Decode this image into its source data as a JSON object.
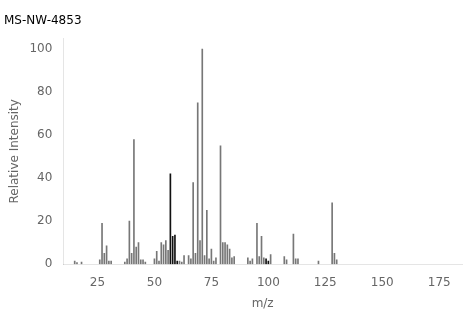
{
  "chart_data": {
    "type": "bar",
    "title": "MS-NW-4853",
    "xlabel": "m/z",
    "ylabel": "Relative Intensity",
    "x": [
      15,
      16,
      18,
      26,
      27,
      28,
      29,
      30,
      31,
      37,
      38,
      39,
      40,
      41,
      42,
      43,
      44,
      45,
      46,
      50,
      51,
      52,
      53,
      54,
      55,
      56,
      57,
      58,
      59,
      60,
      61,
      62,
      63,
      65,
      66,
      67,
      68,
      69,
      70,
      71,
      72,
      73,
      74,
      75,
      76,
      77,
      79,
      80,
      81,
      82,
      83,
      84,
      85,
      91,
      92,
      93,
      95,
      96,
      97,
      98,
      99,
      100,
      101,
      107,
      108,
      111,
      112,
      113,
      122,
      128,
      129,
      130
    ],
    "values": [
      1.5,
      0.8,
      1.0,
      2.0,
      19.0,
      5.0,
      8.5,
      1.5,
      1.5,
      1.0,
      2.5,
      20.0,
      5.0,
      58.0,
      8.0,
      10.0,
      2.0,
      2.0,
      1.0,
      2.5,
      6.0,
      1.5,
      10.0,
      9.0,
      11.0,
      6.5,
      42.0,
      13.0,
      13.5,
      1.5,
      1.5,
      1.0,
      4.0,
      4.0,
      2.5,
      38.0,
      5.0,
      75.0,
      11.0,
      100.0,
      4.0,
      25.0,
      2.5,
      7.0,
      1.5,
      3.0,
      55.0,
      10.0,
      10.0,
      9.0,
      7.0,
      3.0,
      3.5,
      3.0,
      1.5,
      2.5,
      19.0,
      3.5,
      13.0,
      3.0,
      2.5,
      1.5,
      4.5,
      3.5,
      2.0,
      14.0,
      2.5,
      2.5,
      1.5,
      28.5,
      5.0,
      2.0
    ],
    "colors": [
      "#777777",
      "#777777",
      "#777777",
      "#777777",
      "#777777",
      "#777777",
      "#777777",
      "#777777",
      "#777777",
      "#777777",
      "#777777",
      "#777777",
      "#777777",
      "#777777",
      "#777777",
      "#777777",
      "#777777",
      "#777777",
      "#777777",
      "#777777",
      "#777777",
      "#777777",
      "#777777",
      "#777777",
      "#777777",
      "#777777",
      "#111111",
      "#111111",
      "#111111",
      "#111111",
      "#777777",
      "#777777",
      "#777777",
      "#777777",
      "#777777",
      "#777777",
      "#777777",
      "#777777",
      "#777777",
      "#777777",
      "#777777",
      "#777777",
      "#777777",
      "#777777",
      "#777777",
      "#777777",
      "#777777",
      "#777777",
      "#777777",
      "#777777",
      "#777777",
      "#777777",
      "#777777",
      "#777777",
      "#777777",
      "#777777",
      "#777777",
      "#777777",
      "#777777",
      "#777777",
      "#111111",
      "#111111",
      "#777777",
      "#777777",
      "#777777",
      "#777777",
      "#777777",
      "#777777",
      "#777777",
      "#777777",
      "#777777",
      "#777777"
    ],
    "xlim": [
      10,
      185
    ],
    "xticks": [
      25,
      50,
      75,
      100,
      125,
      150,
      175
    ],
    "ylim": [
      0,
      105
    ],
    "yticks": [
      0,
      20,
      40,
      60,
      80,
      100
    ],
    "grid": false
  }
}
